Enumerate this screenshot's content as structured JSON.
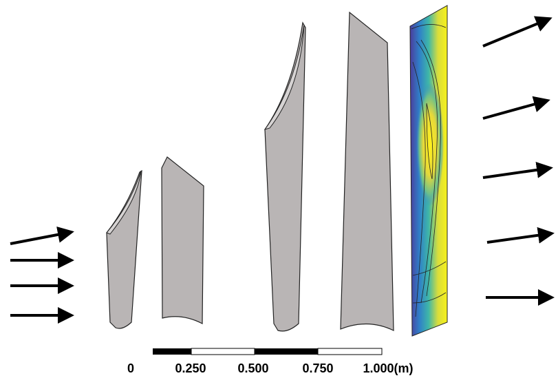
{
  "scale_bar": {
    "labels": [
      "0",
      "0.250",
      "0.500",
      "0.750",
      "1.000(m)"
    ]
  }
}
